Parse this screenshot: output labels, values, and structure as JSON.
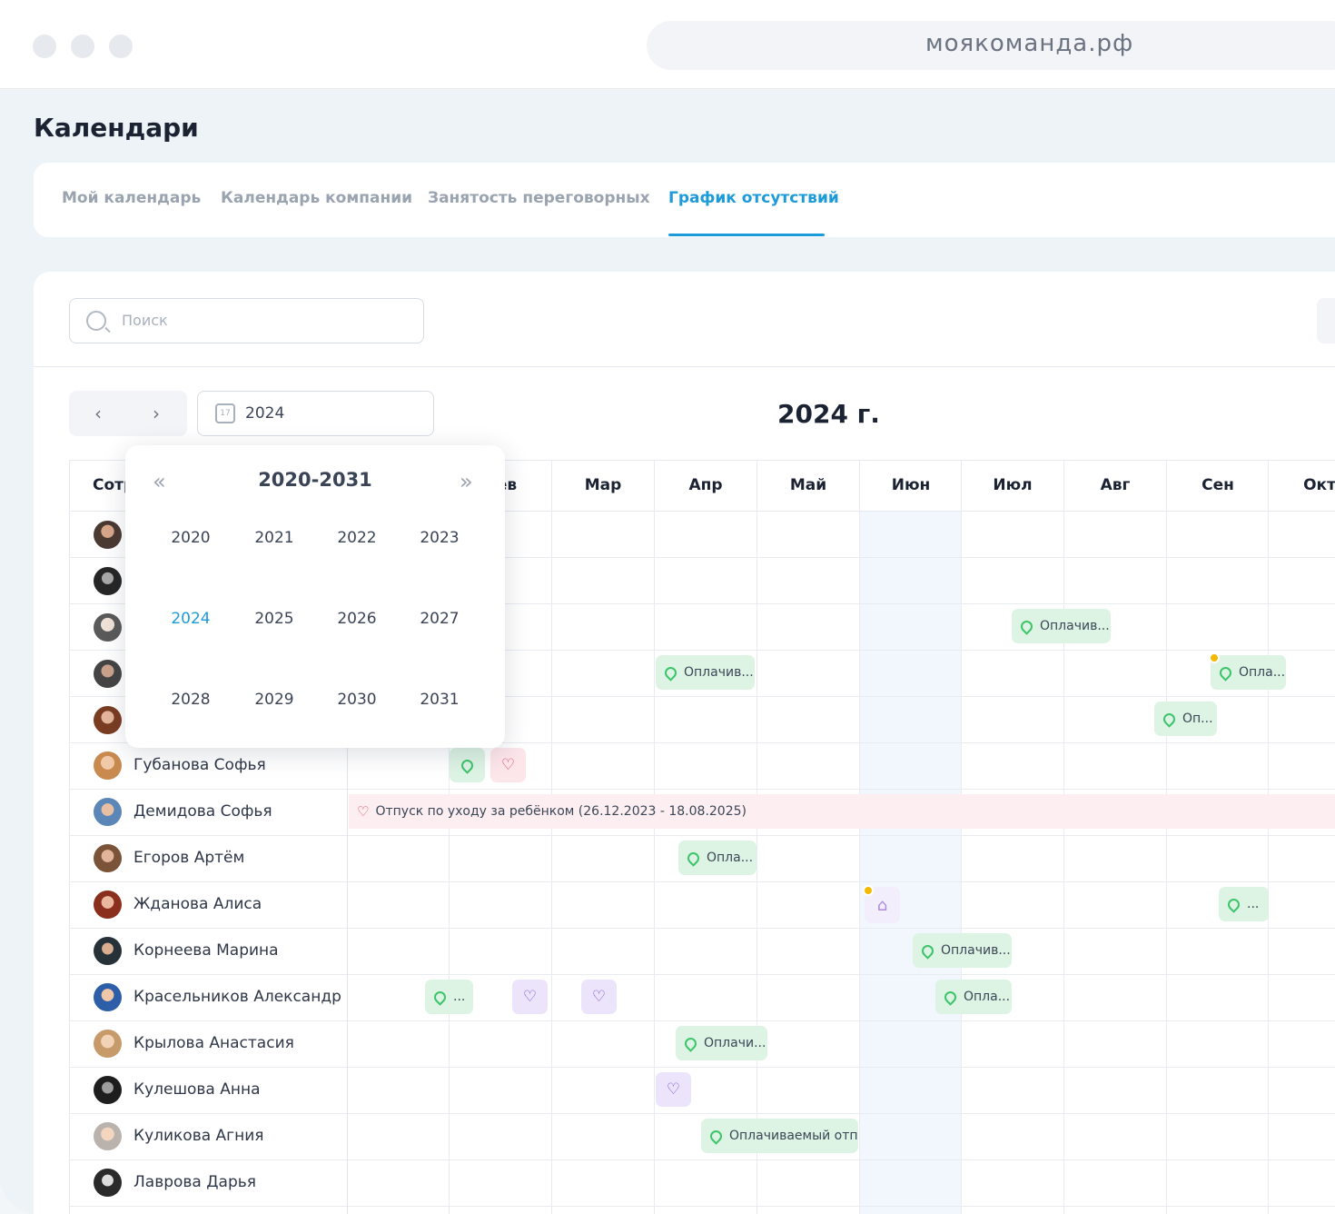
{
  "browser": {
    "url": "моякоманда.рф"
  },
  "page": {
    "title": "Календари"
  },
  "tabs": [
    {
      "label": "Мой календарь"
    },
    {
      "label": "Календарь компании"
    },
    {
      "label": "Занятость переговорных"
    },
    {
      "label": "График отсутствий"
    }
  ],
  "active_tab": "График отсутствий",
  "search": {
    "placeholder": "Поиск"
  },
  "toolbar": {
    "date_value": "2024",
    "calendar_icon_text": "17"
  },
  "year_title": "2024 г.",
  "grid": {
    "employee_header": "Сотрудник",
    "months": [
      "ев",
      "Мар",
      "Апр",
      "Май",
      "Июн",
      "Июл",
      "Авг",
      "Сен",
      "Окт"
    ],
    "employees": [
      {
        "name": ""
      },
      {
        "name": ""
      },
      {
        "name": ""
      },
      {
        "name": ""
      },
      {
        "name": ""
      },
      {
        "name": "Губанова Софья"
      },
      {
        "name": "Демидова Софья"
      },
      {
        "name": "Егоров Артём"
      },
      {
        "name": "Жданова Алиса"
      },
      {
        "name": "Корнеева Марина"
      },
      {
        "name": "Красельников Александр"
      },
      {
        "name": "Крылова Анастасия"
      },
      {
        "name": "Кулешова Анна"
      },
      {
        "name": "Куликова Агния"
      },
      {
        "name": "Лаврова Дарья"
      }
    ],
    "chips": {
      "r3_jul": "Оплачив...",
      "r4_apr": "Оплачив...",
      "r4_sep": "Опла...",
      "r5_aug": "Оп...",
      "r8_apr": "Опла...",
      "r9_sep": "...",
      "r10_jun": "Оплачив...",
      "r11_feb": "...",
      "r11_jun": "Опла...",
      "r12_apr": "Оплачи...",
      "r14_apr": "Оплачиваемый отп..."
    },
    "leave_strip": "Отпуск по уходу за ребёнком (26.12.2023 - 18.08.2025)"
  },
  "year_picker": {
    "range": "2020-2031",
    "years": [
      "2020",
      "2021",
      "2022",
      "2023",
      "2024",
      "2025",
      "2026",
      "2027",
      "2028",
      "2029",
      "2030",
      "2031"
    ],
    "selected": "2024"
  },
  "colors": {
    "accent": "#1d9bd9",
    "paid_leave_bg": "#ddf3e4",
    "sick_leave_bg": "#ece4fb",
    "parental_leave_bg": "#fdeef1",
    "pending_badge": "#f5b800"
  }
}
